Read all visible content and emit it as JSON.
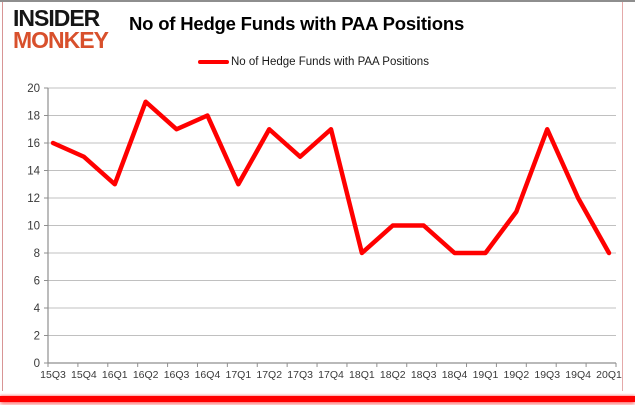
{
  "logo": {
    "line1": "INSIDER",
    "line2": "MONKEY",
    "line1_color": "#151515",
    "line2_color": "#d8502c"
  },
  "header": {
    "title": "No of Hedge Funds with PAA Positions"
  },
  "legend": {
    "label": "No of Hedge Funds with PAA Positions",
    "swatch_color": "#ff0000"
  },
  "chart_data": {
    "type": "line",
    "title": "No of Hedge Funds with PAA Positions",
    "categories": [
      "15Q3",
      "15Q4",
      "16Q1",
      "16Q2",
      "16Q3",
      "16Q4",
      "17Q1",
      "17Q2",
      "17Q3",
      "17Q4",
      "18Q1",
      "18Q2",
      "18Q3",
      "18Q4",
      "19Q1",
      "19Q2",
      "19Q3",
      "19Q4",
      "20Q1"
    ],
    "series": [
      {
        "name": "No of Hedge Funds with PAA Positions",
        "color": "#ff0000",
        "values": [
          16,
          15,
          13,
          19,
          17,
          18,
          13,
          17,
          15,
          17,
          8,
          10,
          10,
          8,
          8,
          11,
          17,
          12,
          8
        ]
      }
    ],
    "xlabel": "",
    "ylabel": "",
    "ylim": [
      0,
      20
    ],
    "ytick_step": 2,
    "yticks": [
      0,
      2,
      4,
      6,
      8,
      10,
      12,
      14,
      16,
      18,
      20
    ],
    "grid": "horizontal",
    "legend_position": "top"
  },
  "colors": {
    "gridline": "#c0c0c0",
    "axis": "#8f8f8f",
    "tick_label": "#3a3a3a",
    "bottom_bar": "#ff0000"
  }
}
